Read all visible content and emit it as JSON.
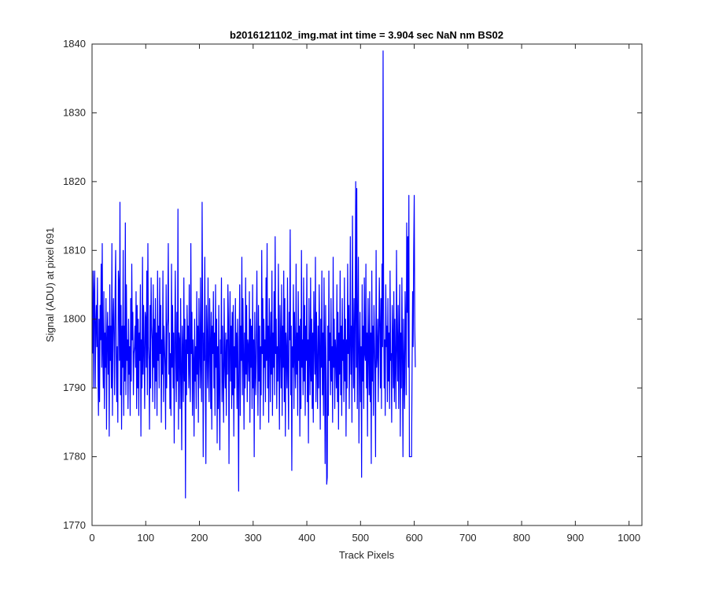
{
  "chart_data": {
    "type": "line",
    "title": "b2016121102_img.mat int time = 3.904 sec  NaN nm BS02",
    "xlabel": "Track Pixels",
    "ylabel": "Signal (ADU) at pixel 691",
    "xlim": [
      0,
      1024
    ],
    "ylim": [
      1770,
      1840
    ],
    "xticks": [
      0,
      100,
      200,
      300,
      400,
      500,
      600,
      700,
      800,
      900,
      1000
    ],
    "yticks": [
      1770,
      1780,
      1790,
      1800,
      1810,
      1820,
      1830,
      1840
    ],
    "grid": false,
    "series_color": "#0000ff",
    "series": [
      {
        "x_start": 1,
        "x_step": 1,
        "values": [
          1795,
          1807,
          1790,
          1804,
          1807,
          1790,
          1799,
          1802,
          1796,
          1806,
          1793,
          1786,
          1800,
          1788,
          1802,
          1797,
          1808,
          1793,
          1811,
          1795,
          1790,
          1804,
          1787,
          1798,
          1793,
          1803,
          1784,
          1797,
          1801,
          1792,
          1799,
          1783,
          1805,
          1794,
          1799,
          1790,
          1811,
          1786,
          1799,
          1803,
          1797,
          1789,
          1804,
          1810,
          1795,
          1788,
          1796,
          1785,
          1807,
          1805,
          1794,
          1817,
          1789,
          1802,
          1784,
          1799,
          1793,
          1810,
          1786,
          1799,
          1791,
          1814,
          1789,
          1805,
          1794,
          1797,
          1787,
          1800,
          1792,
          1796,
          1786,
          1803,
          1791,
          1808,
          1797,
          1801,
          1789,
          1795,
          1796,
          1799,
          1793,
          1804,
          1787,
          1802,
          1790,
          1800,
          1786,
          1798,
          1794,
          1805,
          1783,
          1797,
          1790,
          1809,
          1792,
          1802,
          1795,
          1787,
          1801,
          1800,
          1793,
          1807,
          1789,
          1811,
          1796,
          1794,
          1784,
          1802,
          1790,
          1806,
          1799,
          1797,
          1788,
          1805,
          1793,
          1800,
          1787,
          1803,
          1791,
          1798,
          1786,
          1807,
          1794,
          1799,
          1790,
          1806,
          1795,
          1802,
          1785,
          1797,
          1792,
          1807,
          1788,
          1799,
          1796,
          1793,
          1784,
          1805,
          1790,
          1799,
          1800,
          1811,
          1792,
          1798,
          1787,
          1795,
          1786,
          1808,
          1793,
          1802,
          1790,
          1798,
          1782,
          1796,
          1807,
          1794,
          1788,
          1801,
          1791,
          1816,
          1784,
          1798,
          1797,
          1787,
          1803,
          1793,
          1781,
          1799,
          1795,
          1788,
          1806,
          1791,
          1800,
          1774,
          1797,
          1789,
          1802,
          1795,
          1799,
          1790,
          1805,
          1792,
          1788,
          1811,
          1795,
          1801,
          1786,
          1797,
          1794,
          1783,
          1800,
          1791,
          1796,
          1787,
          1804,
          1792,
          1799,
          1785,
          1803,
          1796,
          1790,
          1806,
          1793,
          1788,
          1817,
          1799,
          1780,
          1798,
          1794,
          1809,
          1791,
          1779,
          1802,
          1797,
          1790,
          1806,
          1794,
          1788,
          1803,
          1797,
          1787,
          1801,
          1784,
          1799,
          1795,
          1804,
          1790,
          1798,
          1786,
          1805,
          1793,
          1800,
          1782,
          1796,
          1787,
          1802,
          1789,
          1781,
          1797,
          1795,
          1806,
          1788,
          1799,
          1791,
          1785,
          1803,
          1794,
          1790,
          1798,
          1786,
          1797,
          1792,
          1805,
          1800,
          1779,
          1796,
          1804,
          1791,
          1799,
          1787,
          1801,
          1789,
          1802,
          1783,
          1796,
          1790,
          1803,
          1793,
          1798,
          1787,
          1800,
          1791,
          1775,
          1797,
          1805,
          1786,
          1799,
          1794,
          1809,
          1789,
          1803,
          1795,
          1784,
          1798,
          1790,
          1806,
          1792,
          1802,
          1788,
          1797,
          1796,
          1791,
          1804,
          1785,
          1800,
          1793,
          1799,
          1787,
          1805,
          1790,
          1797,
          1780,
          1801,
          1793,
          1789,
          1798,
          1807,
          1794,
          1786,
          1802,
          1791,
          1799,
          1784,
          1796,
          1789,
          1810,
          1795,
          1803,
          1786,
          1800,
          1793,
          1797,
          1788,
          1806,
          1794,
          1811,
          1790,
          1799,
          1785,
          1803,
          1797,
          1788,
          1801,
          1792,
          1807,
          1786,
          1798,
          1793,
          1804,
          1789,
          1812,
          1795,
          1800,
          1787,
          1796,
          1791,
          1808,
          1794,
          1784,
          1802,
          1797,
          1790,
          1805,
          1786,
          1799,
          1793,
          1807,
          1788,
          1803,
          1783,
          1798,
          1795,
          1790,
          1806,
          1792,
          1784,
          1801,
          1797,
          1813,
          1789,
          1799,
          1778,
          1796,
          1793,
          1805,
          1787,
          1801,
          1795,
          1790,
          1808,
          1792,
          1798,
          1786,
          1804,
          1794,
          1799,
          1783,
          1800,
          1787,
          1810,
          1793,
          1797,
          1789,
          1806,
          1791,
          1802,
          1786,
          1799,
          1794,
          1808,
          1788,
          1797,
          1782,
          1803,
          1795,
          1789,
          1806,
          1791,
          1800,
          1787,
          1798,
          1785,
          1804,
          1797,
          1792,
          1809,
          1788,
          1801,
          1794,
          1787,
          1799,
          1790,
          1805,
          1796,
          1784,
          1800,
          1793,
          1807,
          1789,
          1798,
          1786,
          1806,
          1795,
          1779,
          1802,
          1791,
          1776,
          1777,
          1799,
          1786,
          1807,
          1794,
          1798,
          1789,
          1803,
          1791,
          1796,
          1785,
          1809,
          1793,
          1800,
          1787,
          1797,
          1795,
          1790,
          1805,
          1788,
          1801,
          1784,
          1798,
          1792,
          1807,
          1789,
          1799,
          1786,
          1803,
          1794,
          1797,
          1788,
          1806,
          1791,
          1800,
          1783,
          1797,
          1790,
          1808,
          1795,
          1802,
          1787,
          1796,
          1812,
          1792,
          1799,
          1785,
          1815,
          1797,
          1790,
          1803,
          1788,
          1800,
          1820,
          1793,
          1819,
          1787,
          1798,
          1809,
          1782,
          1794,
          1801,
          1788,
          1796,
          1777,
          1805,
          1791,
          1799,
          1787,
          1806,
          1795,
          1794,
          1808,
          1790,
          1798,
          1783,
          1803,
          1796,
          1789,
          1804,
          1788,
          1798,
          1779,
          1807,
          1791,
          1799,
          1786,
          1802,
          1797,
          1792,
          1780,
          1810,
          1793,
          1795,
          1800,
          1788,
          1797,
          1806,
          1799,
          1790,
          1803,
          1787,
          1808,
          1796,
          1839,
          1801,
          1790,
          1797,
          1786,
          1805,
          1796,
          1799,
          1788,
          1803,
          1791,
          1798,
          1787,
          1807,
          1794,
          1795,
          1785,
          1802,
          1797,
          1790,
          1804,
          1788,
          1800,
          1793,
          1787,
          1810,
          1796,
          1791,
          1802,
          1787,
          1797,
          1805,
          1783,
          1798,
          1790,
          1806,
          1795,
          1780,
          1800,
          1792,
          1787,
          1804,
          1799,
          1789,
          1814,
          1801,
          1812,
          1793,
          1818,
          1780,
          1780,
          1780,
          1780,
          1780,
          1793,
          1804,
          1796,
          1810,
          1818,
          1799,
          1793
        ]
      }
    ]
  }
}
